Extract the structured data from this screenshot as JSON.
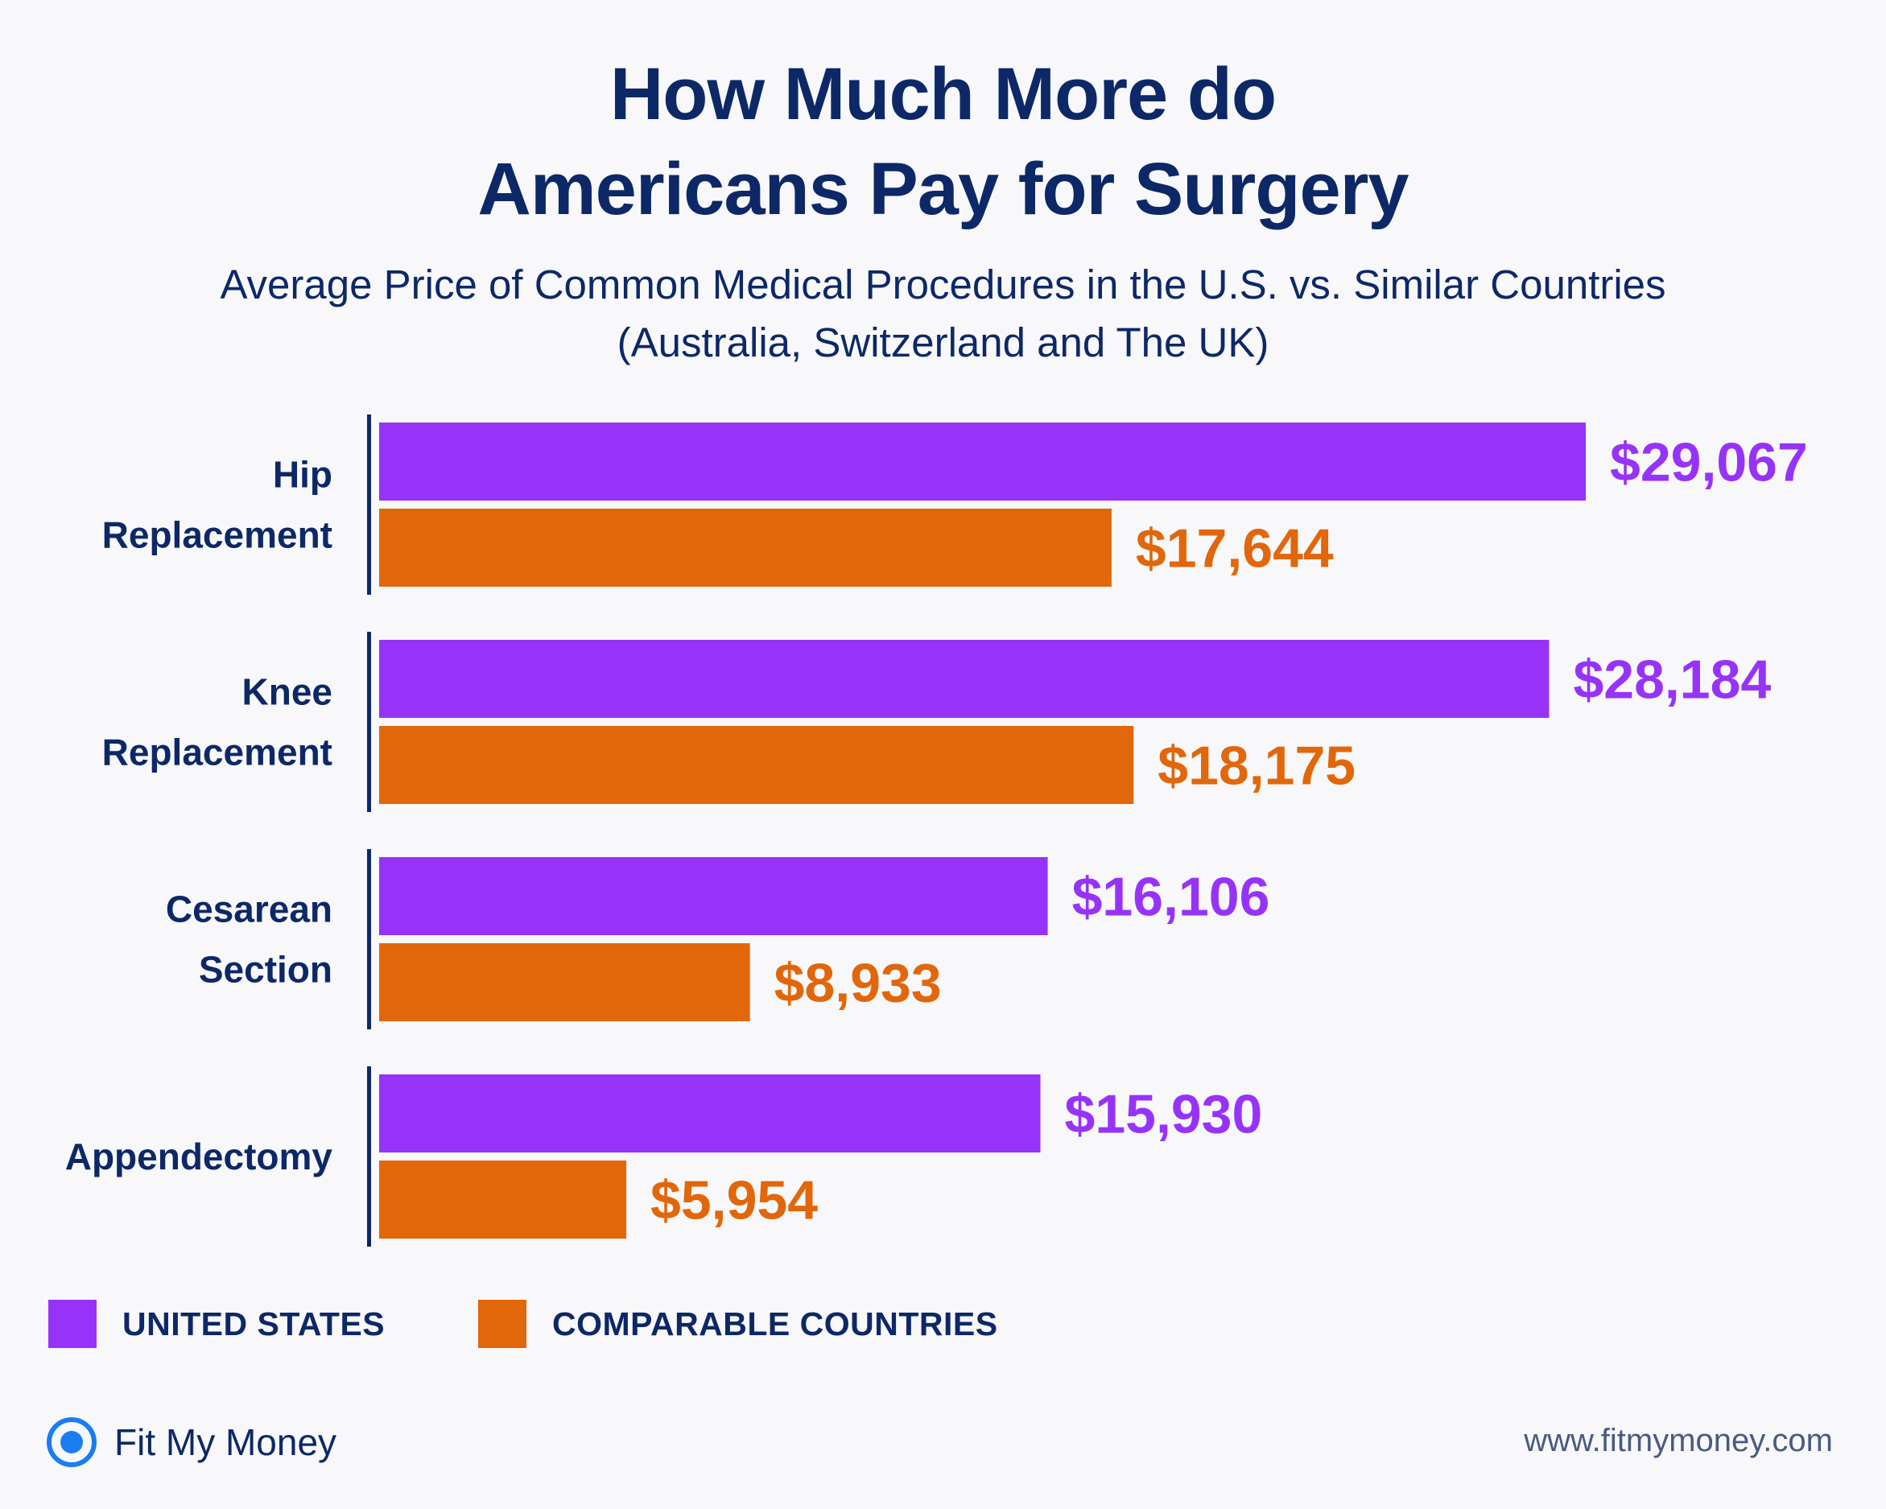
{
  "header": {
    "title_line1": "How Much More do",
    "title_line2": "Americans Pay for Surgery",
    "subtitle_line1": "Average Price of Common Medical Procedures in the U.S. vs. Similar Countries",
    "subtitle_line2": "(Australia, Switzerland and The UK)"
  },
  "colors": {
    "us": "#9733f8",
    "comparable": "#e2660a",
    "text": "#0d2867",
    "brand_blue": "#1a7df0"
  },
  "chart_data": {
    "type": "bar",
    "orientation": "horizontal",
    "title": "How Much More do Americans Pay for Surgery",
    "subtitle": "Average Price of Common Medical Procedures in the U.S. vs. Similar Countries (Australia, Switzerland and The UK)",
    "categories": [
      [
        "Hip",
        "Replacement"
      ],
      [
        "Knee",
        "Replacement"
      ],
      [
        "Cesarean",
        "Section"
      ],
      [
        "Appendectomy"
      ]
    ],
    "series": [
      {
        "name": "UNITED STATES",
        "values": [
          29067,
          28184,
          16106,
          15930
        ],
        "labels": [
          "$29,067",
          "$28,184",
          "$16,106",
          "$15,930"
        ]
      },
      {
        "name": "COMPARABLE COUNTRIES",
        "values": [
          17644,
          18175,
          8933,
          5954
        ],
        "labels": [
          "$17,644",
          "$18,175",
          "$8,933",
          "$5,954"
        ]
      }
    ],
    "xlim": [
      0,
      29067
    ],
    "grid": false,
    "legend_position": "bottom-left"
  },
  "legend": {
    "us_label": "UNITED STATES",
    "comparable_label": "COMPARABLE COUNTRIES"
  },
  "footer": {
    "brand_icon": "target-circle-icon",
    "brand_name": "Fit My Money",
    "website": "www.fitmymoney.com"
  }
}
